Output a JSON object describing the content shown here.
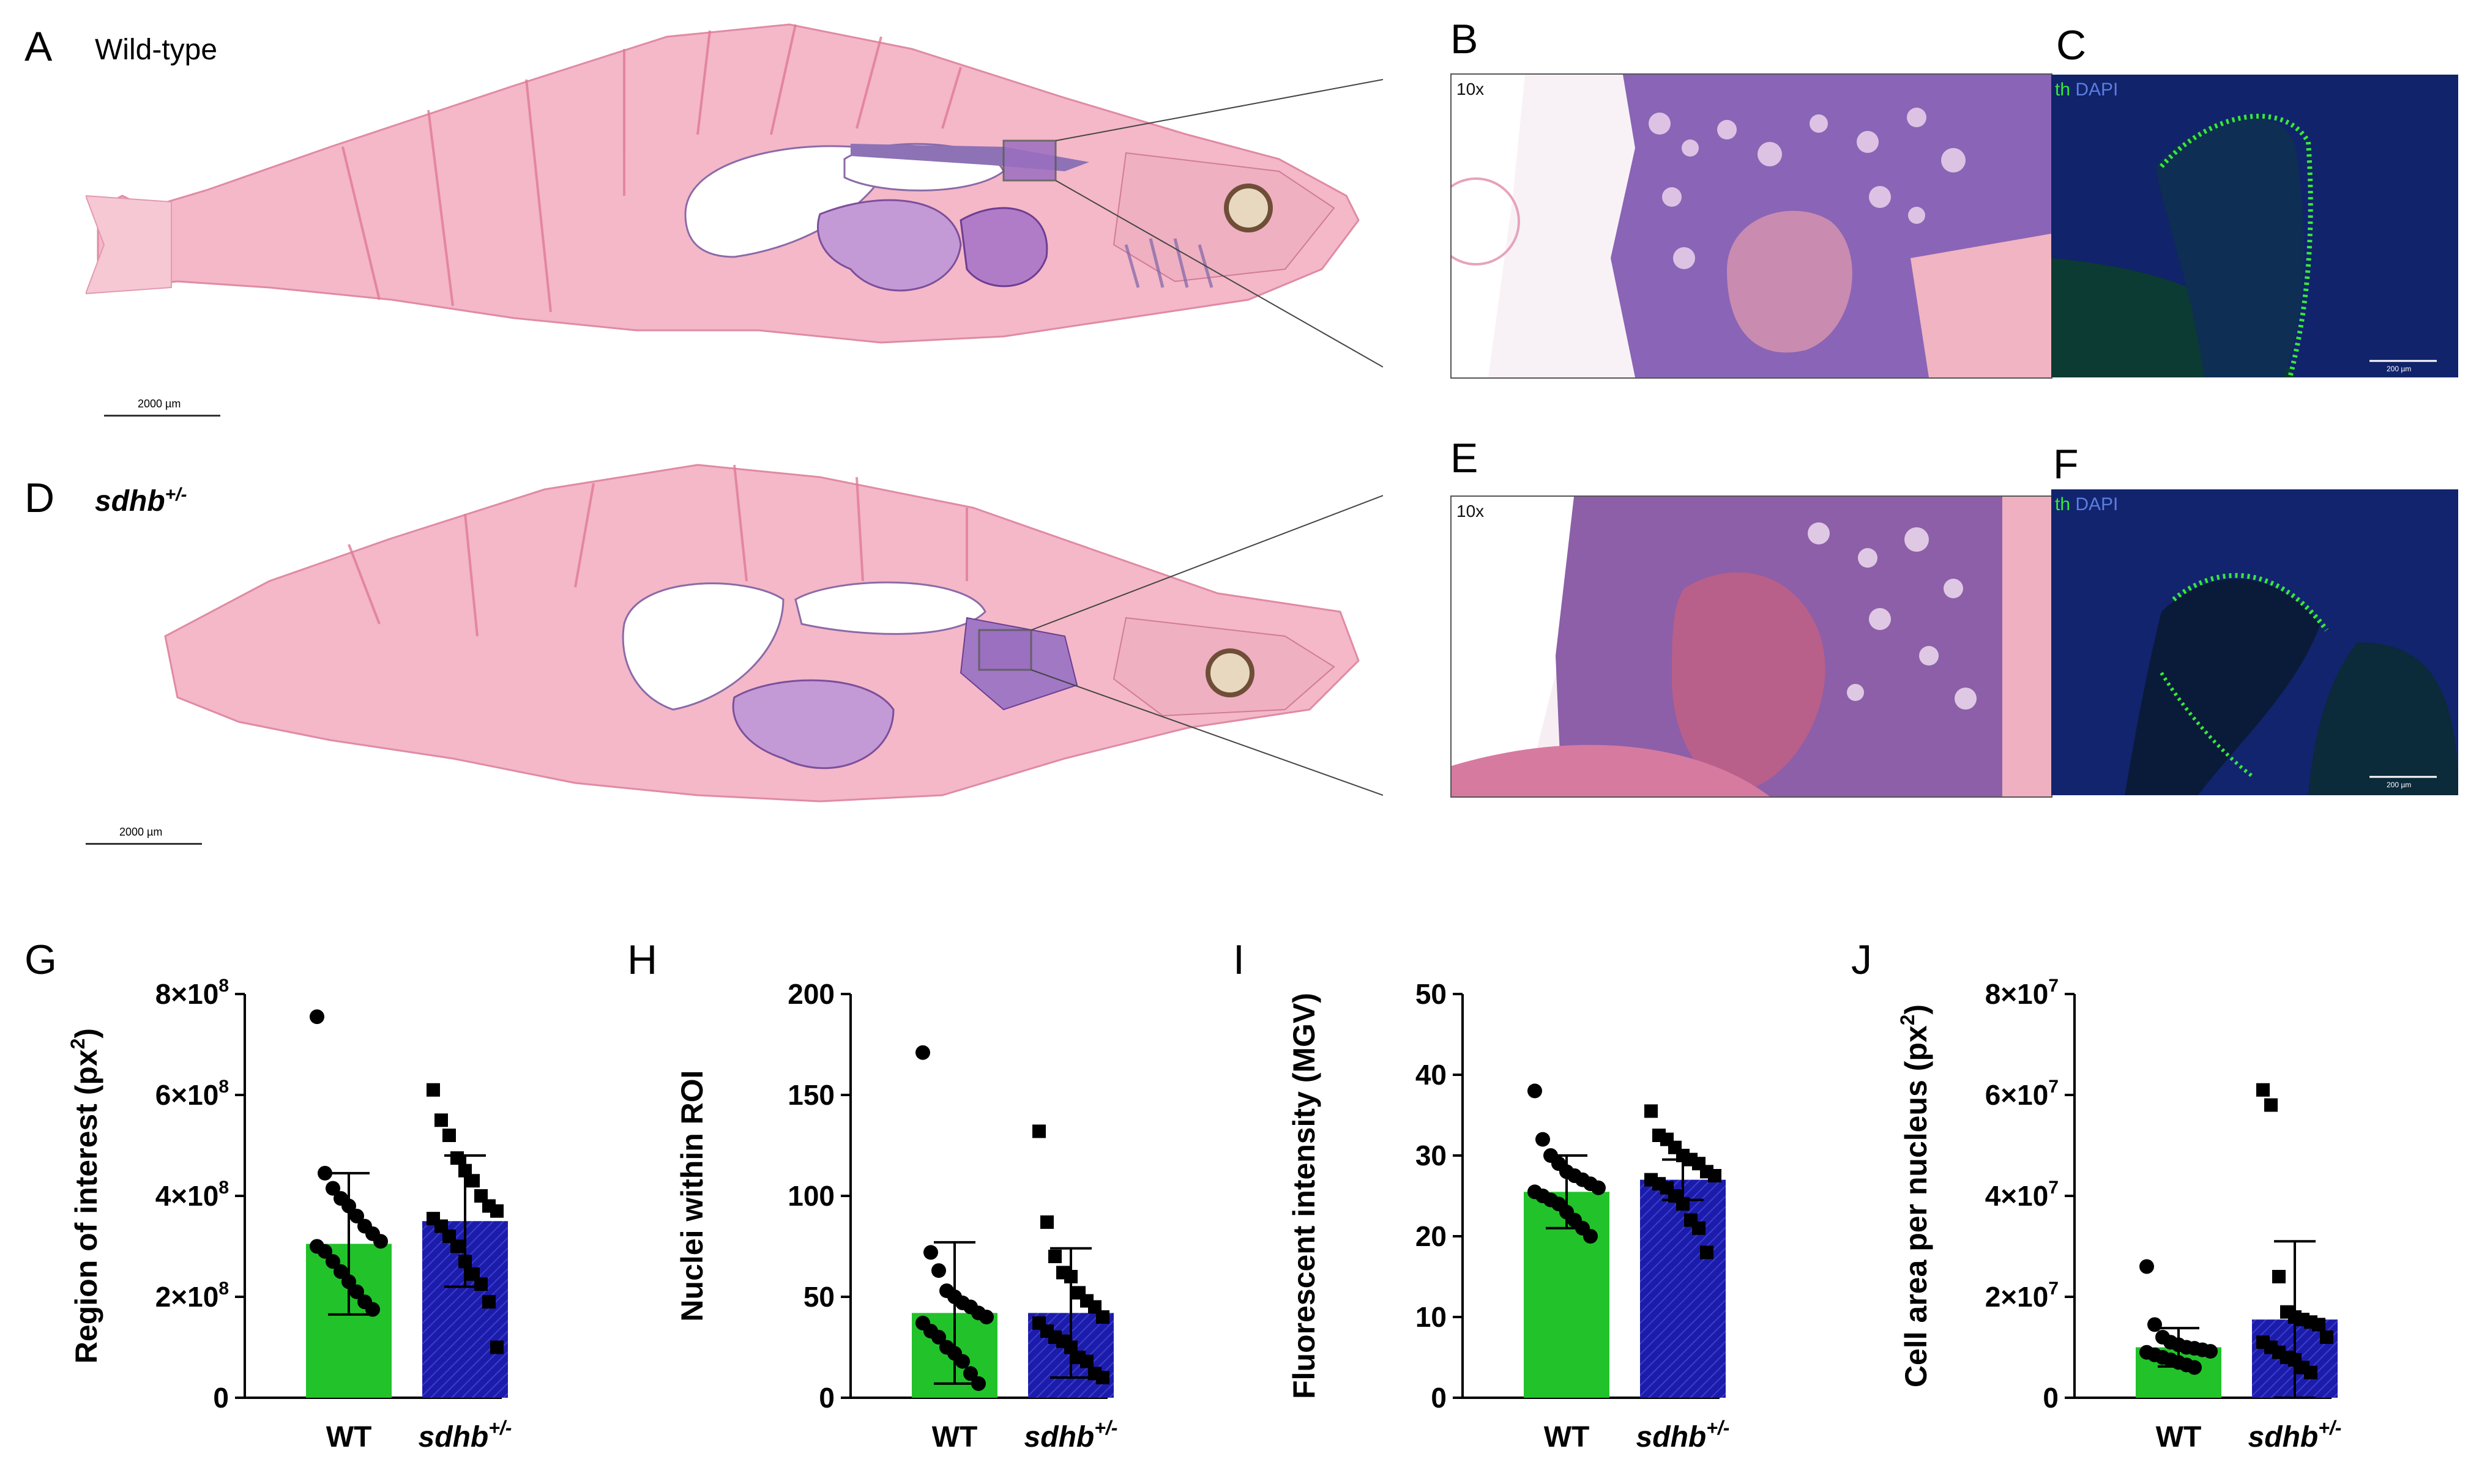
{
  "panels": {
    "A": {
      "letter": "A",
      "label": "Wild-type"
    },
    "B": {
      "letter": "B",
      "magnification": "10x"
    },
    "C": {
      "letter": "C",
      "channel_th": "th",
      "channel_dapi": "DAPI",
      "scale_label": "200 µm"
    },
    "D": {
      "letter": "D",
      "label_main": "sdhb",
      "label_sup": "+/-"
    },
    "E": {
      "letter": "E",
      "magnification": "10x"
    },
    "F": {
      "letter": "F",
      "channel_th": "th",
      "channel_dapi": "DAPI",
      "scale_label": "200 µm"
    },
    "G": {
      "letter": "G"
    },
    "H": {
      "letter": "H"
    },
    "I": {
      "letter": "I"
    },
    "J": {
      "letter": "J"
    }
  },
  "scalebars": {
    "A": "2000 µm",
    "D": "2000 µm"
  },
  "colors": {
    "wt_bar": "#22c22a",
    "sdhb_bar": "#1c1caa",
    "th_green": "#37e83a",
    "dapi_blue": "#5a7ee0",
    "he_pink": "#f2b3c4",
    "he_purple": "#8a5fa8"
  },
  "chart_data": [
    {
      "panel": "G",
      "type": "bar",
      "categories": [
        "WT",
        "sdhb+/-"
      ],
      "category_main": [
        "WT",
        "sdhb"
      ],
      "category_sup": [
        "",
        "+/-"
      ],
      "ylabel_main": "Region of interest (px",
      "ylabel_sup": "2",
      "ylabel_end": ")",
      "ylim": [
        0,
        800000000
      ],
      "yticks": [
        0,
        200000000,
        400000000,
        600000000,
        800000000
      ],
      "ytick_labels": [
        "0",
        "2×10",
        "4×10",
        "6×10",
        "8×10"
      ],
      "ytick_exp": [
        "",
        "8",
        "8",
        "8",
        "8"
      ],
      "means": [
        305000000,
        350000000
      ],
      "sd": [
        140000000,
        130000000
      ],
      "points": [
        [
          755000000,
          445000000,
          415000000,
          395000000,
          380000000,
          360000000,
          340000000,
          325000000,
          310000000,
          300000000,
          290000000,
          270000000,
          250000000,
          230000000,
          210000000,
          190000000,
          175000000
        ],
        [
          610000000,
          550000000,
          520000000,
          475000000,
          450000000,
          430000000,
          400000000,
          380000000,
          370000000,
          355000000,
          340000000,
          320000000,
          300000000,
          270000000,
          245000000,
          225000000,
          190000000,
          100000000
        ]
      ]
    },
    {
      "panel": "H",
      "type": "bar",
      "categories": [
        "WT",
        "sdhb+/-"
      ],
      "category_main": [
        "WT",
        "sdhb"
      ],
      "category_sup": [
        "",
        "+/-"
      ],
      "ylabel_main": "Nuclei within ROI",
      "ylabel_sup": "",
      "ylabel_end": "",
      "ylim": [
        0,
        200
      ],
      "yticks": [
        0,
        50,
        100,
        150,
        200
      ],
      "ytick_labels": [
        "0",
        "50",
        "100",
        "150",
        "200"
      ],
      "ytick_exp": [
        "",
        "",
        "",
        "",
        ""
      ],
      "means": [
        42,
        42
      ],
      "sd": [
        35,
        32
      ],
      "points": [
        [
          171,
          72,
          63,
          53,
          50,
          47,
          45,
          42,
          40,
          37,
          33,
          30,
          25,
          22,
          18,
          12,
          7
        ],
        [
          132,
          87,
          70,
          62,
          60,
          52,
          48,
          45,
          40,
          37,
          33,
          30,
          28,
          25,
          20,
          18,
          12,
          10
        ]
      ]
    },
    {
      "panel": "I",
      "type": "bar",
      "categories": [
        "WT",
        "sdhb+/-"
      ],
      "category_main": [
        "WT",
        "sdhb"
      ],
      "category_sup": [
        "",
        "+/-"
      ],
      "ylabel_main": "Fluorescent intensity (MGV)",
      "ylabel_sup": "",
      "ylabel_end": "",
      "ylim": [
        0,
        50
      ],
      "yticks": [
        0,
        10,
        20,
        30,
        40,
        50
      ],
      "ytick_labels": [
        "0",
        "10",
        "20",
        "30",
        "40",
        "50"
      ],
      "ytick_exp": [
        "",
        "",
        "",
        "",
        "",
        ""
      ],
      "means": [
        25.5,
        27
      ],
      "sd": [
        4.5,
        2.5
      ],
      "points": [
        [
          38,
          32,
          30,
          29,
          28,
          27.5,
          27,
          26.5,
          26,
          25.5,
          25,
          24.5,
          24,
          23,
          22,
          21,
          20
        ],
        [
          35.5,
          32.5,
          32,
          31,
          30,
          29.5,
          29,
          28,
          27.5,
          27,
          26.5,
          26,
          25,
          24,
          22,
          21,
          18
        ]
      ]
    },
    {
      "panel": "J",
      "type": "bar",
      "categories": [
        "WT",
        "sdhb+/-"
      ],
      "category_main": [
        "WT",
        "sdhb"
      ],
      "category_sup": [
        "",
        "+/-"
      ],
      "ylabel_main": "Cell area per nucleus (px",
      "ylabel_sup": "2",
      "ylabel_end": ")",
      "ylim": [
        0,
        80000000
      ],
      "yticks": [
        0,
        20000000,
        40000000,
        60000000,
        80000000
      ],
      "ytick_labels": [
        "0",
        "2×10",
        "4×10",
        "6×10",
        "8×10"
      ],
      "ytick_exp": [
        "",
        "7",
        "7",
        "7",
        "7"
      ],
      "means": [
        10000000,
        15500000
      ],
      "sd": [
        3800000,
        15500000
      ],
      "points": [
        [
          26000000,
          14500000,
          12000000,
          11000000,
          10500000,
          10000000,
          9800000,
          9500000,
          9200000,
          9000000,
          8500000,
          8000000,
          7500000,
          7000000,
          6500000,
          6000000
        ],
        [
          61000000,
          58000000,
          24000000,
          17000000,
          16000000,
          15500000,
          15000000,
          14500000,
          12000000,
          11000000,
          10000000,
          9000000,
          8000000,
          7500000,
          6000000,
          5000000
        ]
      ]
    }
  ]
}
